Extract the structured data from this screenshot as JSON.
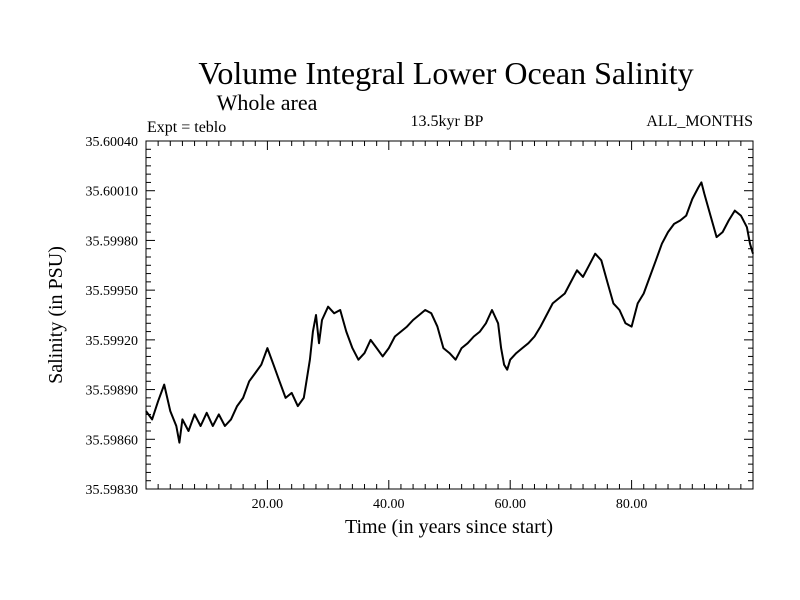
{
  "chart_data": {
    "type": "line",
    "title": "Volume Integral Lower Ocean Salinity",
    "subtitle": "Whole area",
    "left_note": "Expt = teblo",
    "center_note": "13.5kyr BP",
    "right_note": "ALL_MONTHS",
    "xlabel": "Time (in years since start)",
    "ylabel": "Salinity (in PSU)",
    "xlim": [
      0,
      100
    ],
    "ylim": [
      35.5983,
      35.6004
    ],
    "x_ticks": [
      {
        "value": 20,
        "label": "20.00"
      },
      {
        "value": 40,
        "label": "40.00"
      },
      {
        "value": 60,
        "label": "60.00"
      },
      {
        "value": 80,
        "label": "80.00"
      }
    ],
    "y_ticks": [
      {
        "value": 35.5983,
        "label": "35.59830"
      },
      {
        "value": 35.5986,
        "label": "35.59860"
      },
      {
        "value": 35.5989,
        "label": "35.59890"
      },
      {
        "value": 35.5992,
        "label": "35.59920"
      },
      {
        "value": 35.5995,
        "label": "35.59950"
      },
      {
        "value": 35.5998,
        "label": "35.59980"
      },
      {
        "value": 35.6001,
        "label": "35.60010"
      },
      {
        "value": 35.6004,
        "label": "35.60040"
      }
    ],
    "series": [
      {
        "name": "salinity",
        "color": "#000000",
        "x": [
          0.0,
          1.0,
          2.0,
          3.0,
          4.0,
          5.0,
          5.5,
          6.0,
          7.0,
          8.0,
          9.0,
          10.0,
          11.0,
          12.0,
          13.0,
          14.0,
          15.0,
          16.0,
          17.0,
          18.0,
          19.0,
          20.0,
          21.0,
          22.0,
          23.0,
          24.0,
          25.0,
          26.0,
          27.0,
          27.5,
          28.0,
          28.5,
          29.0,
          30.0,
          31.0,
          32.0,
          33.0,
          34.0,
          35.0,
          36.0,
          37.0,
          38.0,
          39.0,
          40.0,
          41.0,
          42.0,
          43.0,
          44.0,
          45.0,
          46.0,
          47.0,
          48.0,
          49.0,
          50.0,
          51.0,
          52.0,
          53.0,
          54.0,
          55.0,
          56.0,
          57.0,
          58.0,
          58.5,
          59.0,
          59.5,
          60.0,
          61.0,
          62.0,
          63.0,
          64.0,
          65.0,
          66.0,
          67.0,
          68.0,
          69.0,
          70.0,
          71.0,
          72.0,
          73.0,
          74.0,
          75.0,
          76.0,
          77.0,
          78.0,
          79.0,
          80.0,
          81.0,
          82.0,
          83.0,
          84.0,
          85.0,
          86.0,
          87.0,
          88.0,
          89.0,
          90.0,
          91.0,
          91.5,
          92.0,
          93.0,
          94.0,
          95.0,
          96.0,
          97.0,
          98.0,
          99.0,
          99.5,
          100.0
        ],
        "y": [
          35.59877,
          35.59872,
          35.59883,
          35.59893,
          35.59877,
          35.59868,
          35.59858,
          35.59872,
          35.59865,
          35.59875,
          35.59868,
          35.59876,
          35.59868,
          35.59875,
          35.59868,
          35.59872,
          35.5988,
          35.59885,
          35.59895,
          35.599,
          35.59905,
          35.59915,
          35.59905,
          35.59895,
          35.59885,
          35.59888,
          35.5988,
          35.59885,
          35.59908,
          35.59925,
          35.59935,
          35.59918,
          35.59932,
          35.5994,
          35.59936,
          35.59938,
          35.59925,
          35.59915,
          35.59908,
          35.59912,
          35.5992,
          35.59915,
          35.5991,
          35.59915,
          35.59922,
          35.59925,
          35.59928,
          35.59932,
          35.59935,
          35.59938,
          35.59936,
          35.59928,
          35.59915,
          35.59912,
          35.59908,
          35.59915,
          35.59918,
          35.59922,
          35.59925,
          35.5993,
          35.59938,
          35.5993,
          35.59915,
          35.59905,
          35.59902,
          35.59908,
          35.59912,
          35.59915,
          35.59918,
          35.59922,
          35.59928,
          35.59935,
          35.59942,
          35.59945,
          35.59948,
          35.59955,
          35.59962,
          35.59958,
          35.59965,
          35.59972,
          35.59968,
          35.59955,
          35.59942,
          35.59938,
          35.5993,
          35.59928,
          35.59942,
          35.59948,
          35.59958,
          35.59968,
          35.59978,
          35.59985,
          35.5999,
          35.59992,
          35.59995,
          35.60005,
          35.60012,
          35.60015,
          35.60008,
          35.59995,
          35.59982,
          35.59985,
          35.59992,
          35.59998,
          35.59995,
          35.59988,
          35.59978,
          35.59972
        ]
      }
    ]
  }
}
